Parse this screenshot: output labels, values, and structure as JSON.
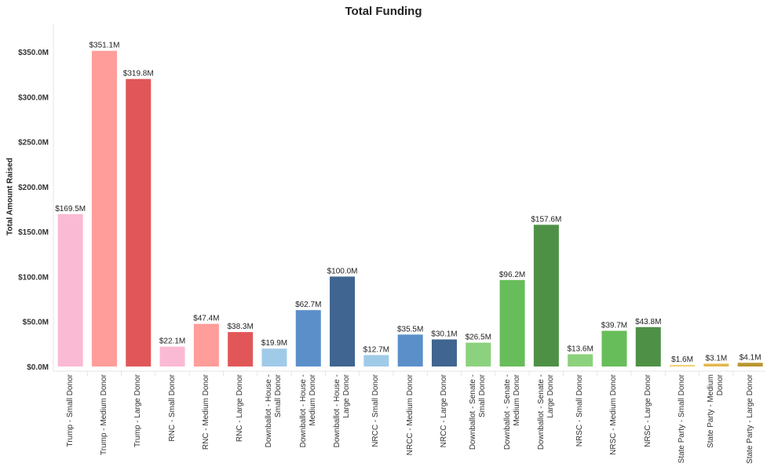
{
  "chart_data": {
    "type": "bar",
    "title": "Total Funding",
    "xlabel": "",
    "ylabel": "Total Amount Raised",
    "ylim": [
      0,
      350
    ],
    "yunit": "$M",
    "grid": false,
    "yticks": [
      "$0.0M",
      "$50.0M",
      "$100.0M",
      "$150.0M",
      "$200.0M",
      "$250.0M",
      "$300.0M",
      "$350.0M"
    ],
    "ytick_values": [
      0,
      50,
      100,
      150,
      200,
      250,
      300,
      350
    ],
    "categories": [
      "Trump - Small Donor",
      "Trump - Medium Donor",
      "Trump - Large Donor",
      "RNC - Small Donor",
      "RNC - Medium Donor",
      "RNC - Large Donor",
      "Downballot - House - Small Donor",
      "Downballot - House - Medium Donor",
      "Downballot - House - Large Donor",
      "NRCC - Small Donor",
      "NRCC - Medium Donor",
      "NRCC - Large Donor",
      "Downballot - Senate - Small Donor",
      "Downballot - Senate - Medium Donor",
      "Downballot - Senate - Large Donor",
      "NRSC - Small Donor",
      "NRSC - Medium Donor",
      "NRSC - Large Donor",
      "State Party - Small Donor",
      "State Party - Medium Donor",
      "State Party - Large Donor"
    ],
    "values": [
      169.5,
      351.1,
      319.8,
      22.1,
      47.4,
      38.3,
      19.9,
      62.7,
      100.0,
      12.7,
      35.5,
      30.1,
      26.5,
      96.2,
      157.6,
      13.6,
      39.7,
      43.8,
      1.6,
      3.1,
      4.1
    ],
    "labels": [
      "$169.5M",
      "$351.1M",
      "$319.8M",
      "$22.1M",
      "$47.4M",
      "$38.3M",
      "$19.9M",
      "$62.7M",
      "$100.0M",
      "$12.7M",
      "$35.5M",
      "$30.1M",
      "$26.5M",
      "$96.2M",
      "$157.6M",
      "$13.6M",
      "$39.7M",
      "$43.8M",
      "$1.6M",
      "$3.1M",
      "$4.1M"
    ],
    "colors": [
      "#fbbad3",
      "#ff9d9a",
      "#e15759",
      "#fbbad3",
      "#ff9d9a",
      "#e15759",
      "#a0cbe8",
      "#5b8fc9",
      "#3f6590",
      "#a0cbe8",
      "#5b8fc9",
      "#3f6590",
      "#8cd17d",
      "#67bd5a",
      "#4e9146",
      "#8cd17d",
      "#67bd5a",
      "#4e9146",
      "#f1ce63",
      "#e2b84e",
      "#b9962f"
    ]
  }
}
